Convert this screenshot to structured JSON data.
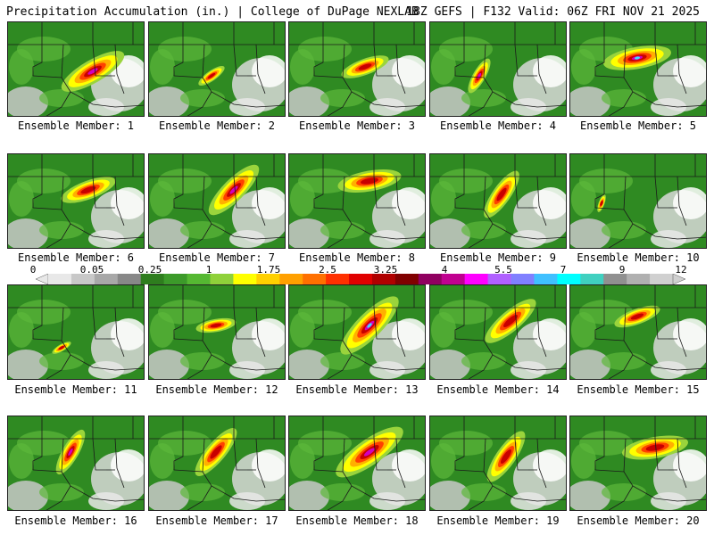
{
  "header": {
    "title": "Precipitation Accumulation (in.) | College of DuPage NEXLAB",
    "run_info": "18Z GEFS | F132 Valid: 06Z FRI NOV 21 2025"
  },
  "legend": {
    "ticks": [
      "0",
      "0.05",
      "0.25",
      "1",
      "1.75",
      "2.5",
      "3.25",
      "4",
      "5.5",
      "7",
      "9",
      "12"
    ],
    "colors": [
      "#e8e8e8",
      "#c8c8c8",
      "#a8a8a8",
      "#888888",
      "#2e7d1e",
      "#3c9a2a",
      "#55b832",
      "#8fd13a",
      "#ffff00",
      "#ffd000",
      "#ffa000",
      "#ff7000",
      "#ff3000",
      "#e00000",
      "#b00000",
      "#800000",
      "#900060",
      "#c00090",
      "#ff00ff",
      "#b060ff",
      "#8080ff",
      "#40c0ff",
      "#00ffff",
      "#40d0c0",
      "#909090",
      "#b0b0b0",
      "#d0d0d0"
    ]
  },
  "members": [
    {
      "label": "Ensemble Member: 1"
    },
    {
      "label": "Ensemble Member: 2"
    },
    {
      "label": "Ensemble Member: 3"
    },
    {
      "label": "Ensemble Member: 4"
    },
    {
      "label": "Ensemble Member: 5"
    },
    {
      "label": "Ensemble Member: 6"
    },
    {
      "label": "Ensemble Member: 7"
    },
    {
      "label": "Ensemble Member: 8"
    },
    {
      "label": "Ensemble Member: 9"
    },
    {
      "label": "Ensemble Member: 10"
    },
    {
      "label": "Ensemble Member: 11"
    },
    {
      "label": "Ensemble Member: 12"
    },
    {
      "label": "Ensemble Member: 13"
    },
    {
      "label": "Ensemble Member: 14"
    },
    {
      "label": "Ensemble Member: 15"
    },
    {
      "label": "Ensemble Member: 16"
    },
    {
      "label": "Ensemble Member: 17"
    },
    {
      "label": "Ensemble Member: 18"
    },
    {
      "label": "Ensemble Member: 19"
    },
    {
      "label": "Ensemble Member: 20"
    }
  ]
}
